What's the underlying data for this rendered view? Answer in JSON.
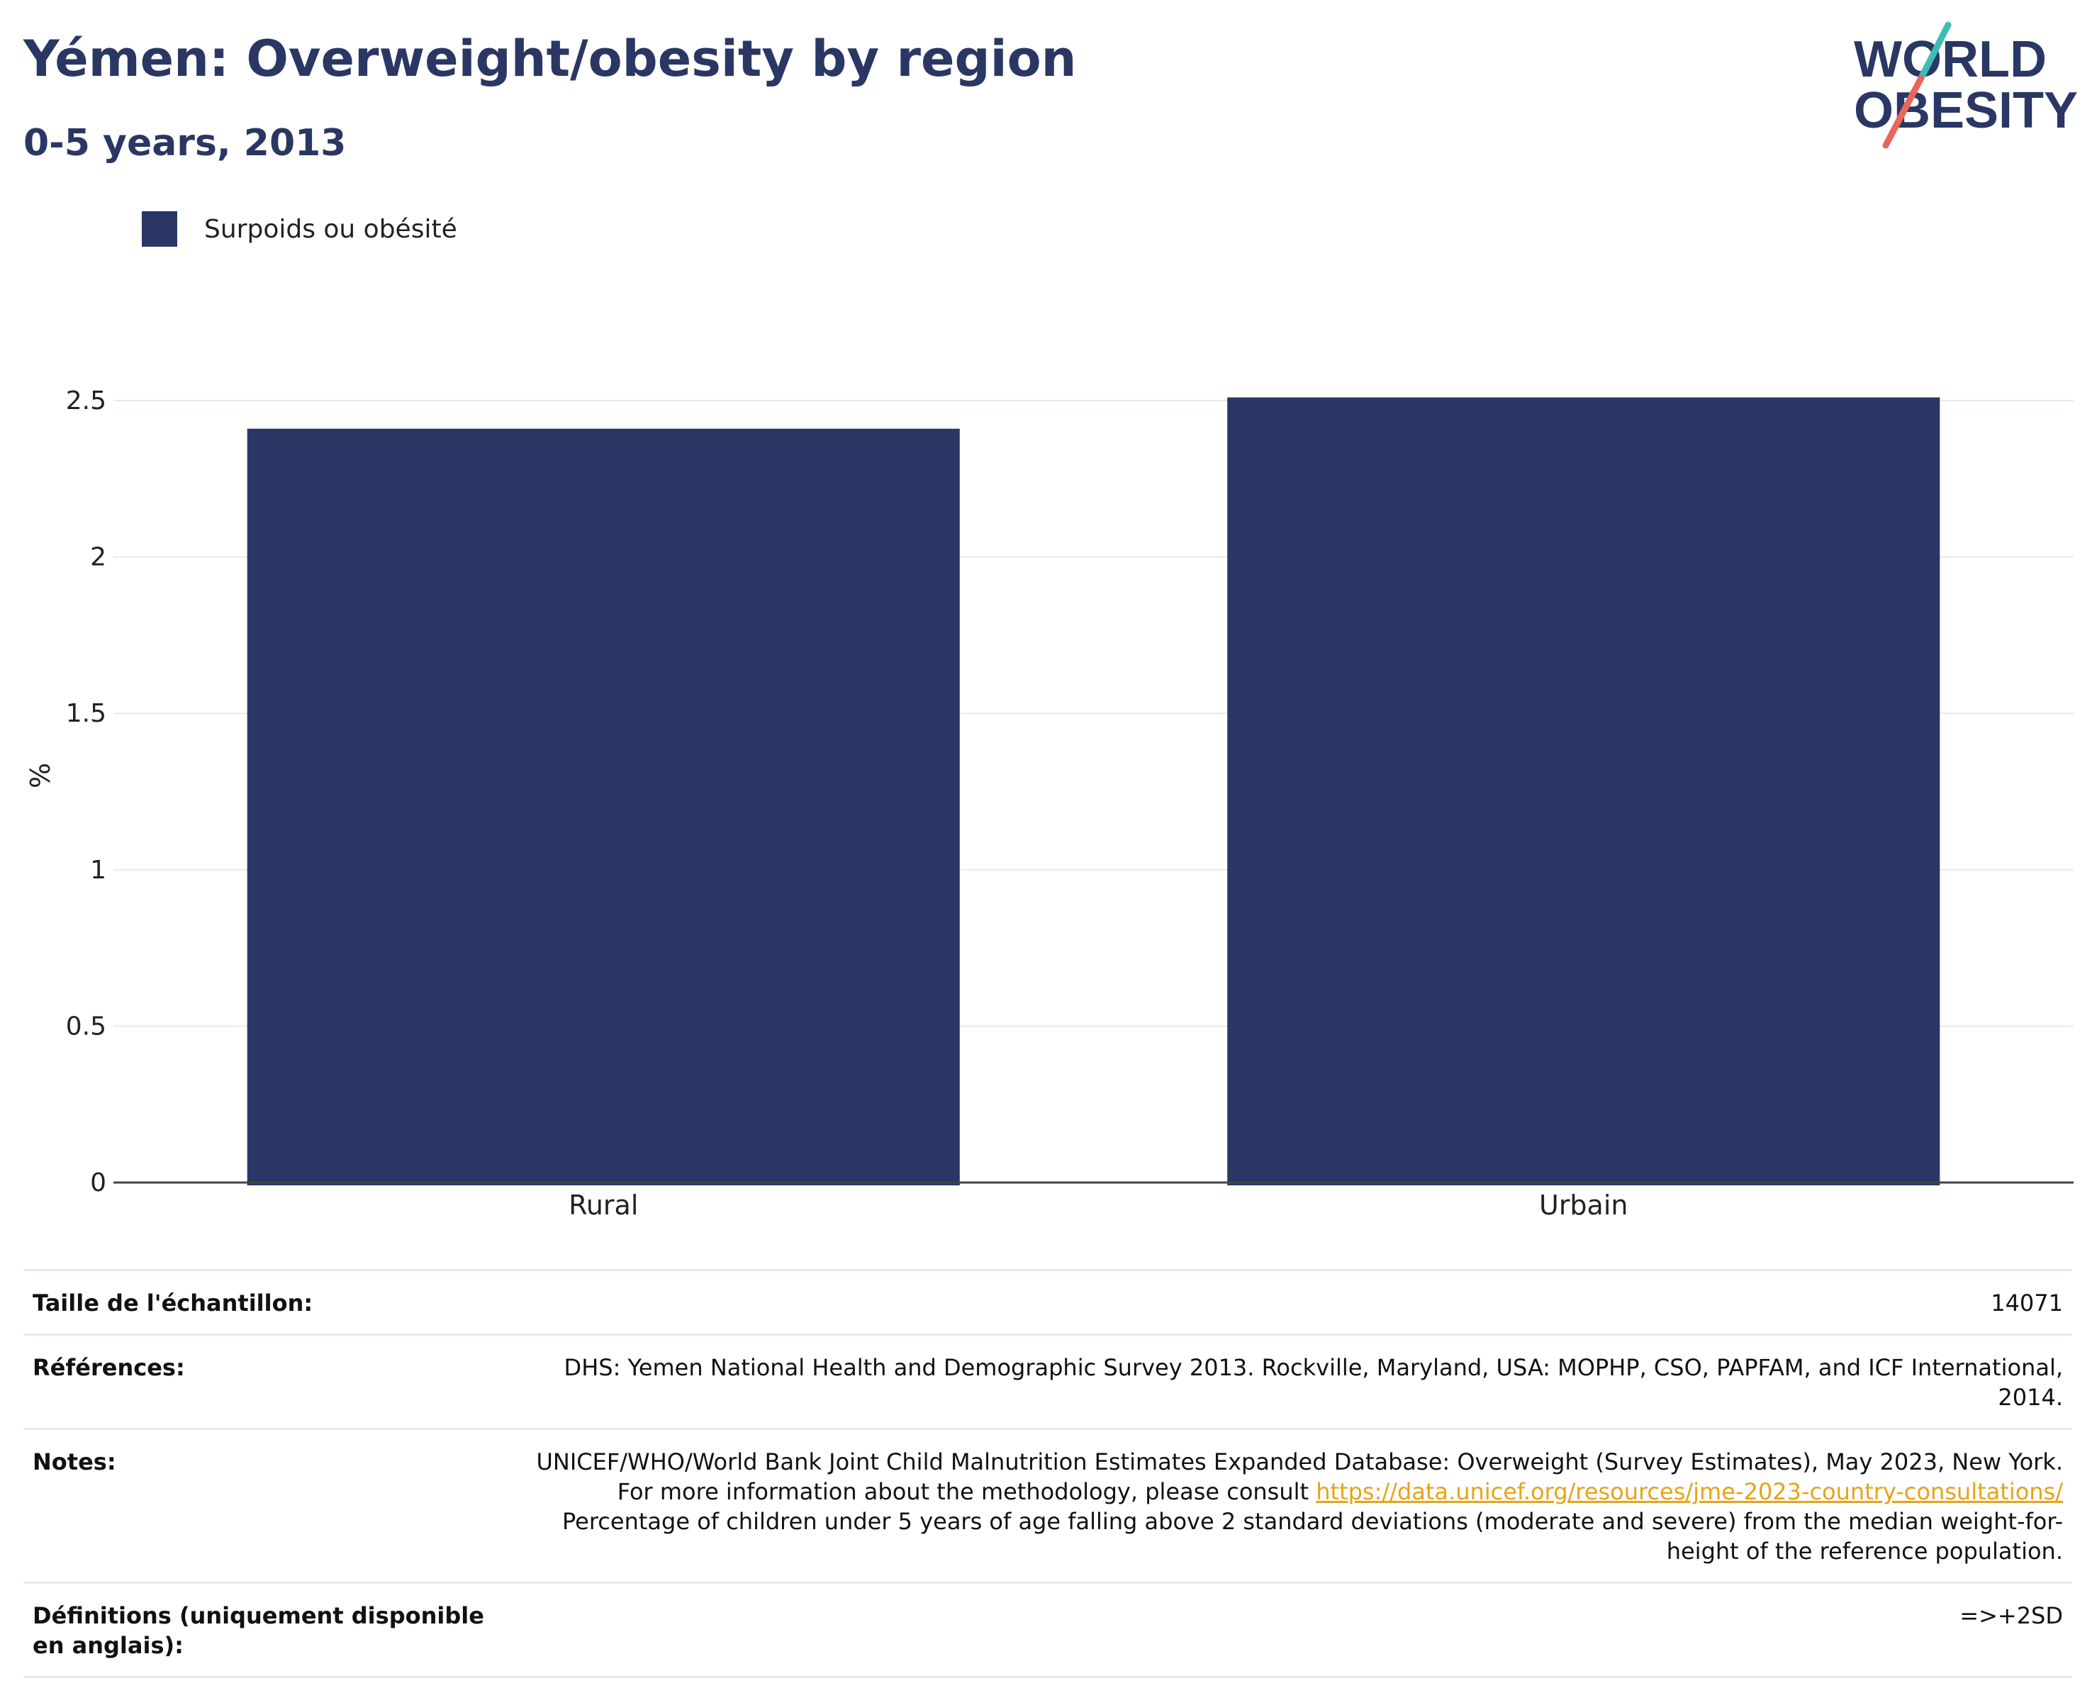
{
  "header": {
    "title": "Yémen: Overweight/obesity by region",
    "subtitle": "0-5 years, 2013"
  },
  "logo": {
    "line1": "WORLD",
    "line2": "OBESITY",
    "accent_teal": "#3dbdb5",
    "accent_coral": "#e8675a"
  },
  "colors": {
    "bar": "#2a3764",
    "text_dark": "#2a3764",
    "link": "#e8a317",
    "grid": "#e6e9f2",
    "axis": "#444444"
  },
  "chart_data": {
    "type": "bar",
    "categories": [
      "Rural",
      "Urbain"
    ],
    "series": [
      {
        "name": "Surpoids ou obésité",
        "values": [
          2.41,
          2.51
        ]
      }
    ],
    "ylabel": "%",
    "ylim": [
      0,
      2.5
    ],
    "yticks": [
      0,
      0.5,
      1,
      1.5,
      2,
      2.5
    ],
    "ytick_labels": [
      "0",
      "0.5",
      "1",
      "1.5",
      "2",
      "2.5"
    ],
    "grid": true,
    "legend": "top-left"
  },
  "info": {
    "sample_label": "Taille de l'échantillon:",
    "sample_value": "14071",
    "references_label": "Références:",
    "references_value": "DHS: Yemen National Health and Demographic Survey 2013. Rockville, Maryland, USA: MOPHP, CSO, PAPFAM, and ICF International, 2014.",
    "notes_label": "Notes:",
    "notes_text_1": "UNICEF/WHO/World Bank Joint Child Malnutrition Estimates Expanded Database: Overweight (Survey Estimates), May 2023, New York. For more information about the methodology, please consult ",
    "notes_link": "https://data.unicef.org/resources/jme-2023-country-consultations/",
    "notes_text_2": "Percentage of children under 5 years of age falling above 2 standard deviations (moderate and severe) from the median weight-for-height of the reference population.",
    "definitions_label": "Définitions (uniquement disponible en anglais):",
    "definitions_value": "=>+2SD"
  }
}
